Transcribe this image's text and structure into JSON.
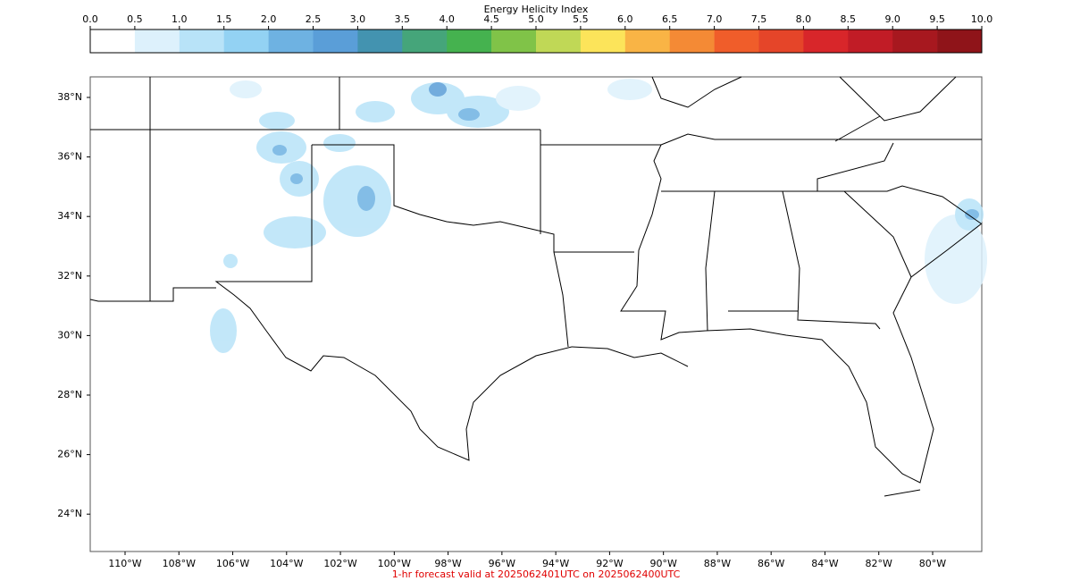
{
  "colorbar": {
    "title": "Energy Helicity Index",
    "ticks": [
      {
        "value": 0,
        "label": "0.0"
      },
      0.5,
      {
        "value": 1,
        "label": "1.0"
      },
      1.5,
      {
        "value": 2,
        "label": "2.0"
      },
      2.5,
      {
        "value": 3,
        "label": "3.0"
      },
      3.5,
      {
        "value": 4,
        "label": "4.0"
      },
      4.5,
      {
        "value": 5,
        "label": "5.0"
      },
      5.5,
      {
        "value": 6,
        "label": "6.0"
      },
      6.5,
      {
        "value": 7,
        "label": "7.0"
      },
      7.5,
      {
        "value": 8,
        "label": "8.0"
      },
      8.5,
      {
        "value": 9,
        "label": "9.0"
      },
      9.5,
      {
        "value": 10,
        "label": "10.0"
      }
    ],
    "colors": [
      "#ffffff",
      "#ddf1fc",
      "#b8e3f8",
      "#93d2f3",
      "#6eb2e2",
      "#5a9ed8",
      "#4393b0",
      "#45a57a",
      "#45b24f",
      "#80c348",
      "#c0d856",
      "#fce45a",
      "#f9b445",
      "#f48a35",
      "#f05d2a",
      "#e54529",
      "#d8262a",
      "#c11c26",
      "#a7181f",
      "#8f1419"
    ]
  },
  "map": {
    "lat_labels": [
      {
        "value": 38,
        "label": "38°N"
      },
      {
        "value": 36,
        "label": "36°N"
      },
      {
        "value": 34,
        "label": "34°N"
      },
      {
        "value": 32,
        "label": "32°N"
      },
      {
        "value": 30,
        "label": "30°N"
      },
      {
        "value": 28,
        "label": "28°N"
      },
      {
        "value": 26,
        "label": "26°N"
      },
      {
        "value": 24,
        "label": "24°N"
      }
    ],
    "lon_labels": [
      {
        "value": -110,
        "label": "110°W"
      },
      {
        "value": -108,
        "label": "108°W"
      },
      {
        "value": -106,
        "label": "106°W"
      },
      {
        "value": -104,
        "label": "104°W"
      },
      {
        "value": -102,
        "label": "102°W"
      },
      {
        "value": -100,
        "label": "100°W"
      },
      {
        "value": -98,
        "label": "98°W"
      },
      {
        "value": -96,
        "label": "96°W"
      },
      {
        "value": -94,
        "label": "94°W"
      },
      {
        "value": -92,
        "label": "92°W"
      },
      {
        "value": -90,
        "label": "90°W"
      },
      {
        "value": -88,
        "label": "88°W"
      },
      {
        "value": -86,
        "label": "86°W"
      },
      {
        "value": -84,
        "label": "84°W"
      },
      {
        "value": -82,
        "label": "82°W"
      },
      {
        "value": -80,
        "label": "80°W"
      }
    ]
  },
  "footer": "1-hr forecast valid at 2025062401UTC on 2025062400UTC"
}
